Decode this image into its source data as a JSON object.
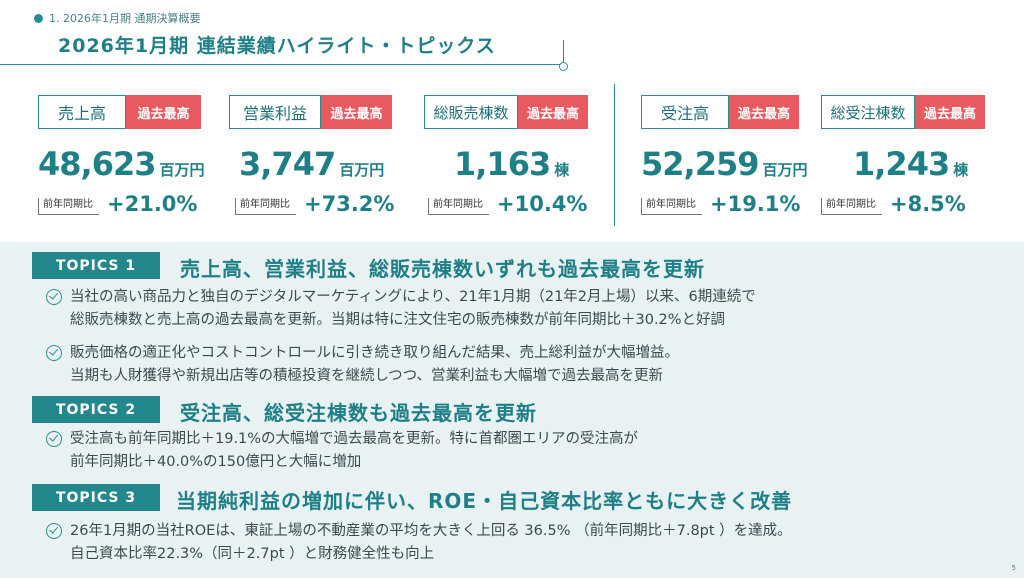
{
  "header": {
    "breadcrumb": "1. 2026年1月期 通期決算概要",
    "title": "2026年1月期 連結業績ハイライト・トピックス"
  },
  "kpis": [
    {
      "label": "売上高",
      "badge": "過去最高",
      "value": "48,623",
      "unit": "百万円",
      "yoy_label": "前年同期比",
      "yoy": "+21.0%"
    },
    {
      "label": "営業利益",
      "badge": "過去最高",
      "value": "3,747",
      "unit": "百万円",
      "yoy_label": "前年同期比",
      "yoy": "+73.2%"
    },
    {
      "label": "総販売棟数",
      "badge": "過去最高",
      "value": "1,163",
      "unit": "棟",
      "yoy_label": "前年同期比",
      "yoy": "+10.4%"
    },
    {
      "label": "受注高",
      "badge": "過去最高",
      "value": "52,259",
      "unit": "百万円",
      "yoy_label": "前年同期比",
      "yoy": "+19.1%"
    },
    {
      "label": "総受注棟数",
      "badge": "過去最高",
      "value": "1,243",
      "unit": "棟",
      "yoy_label": "前年同期比",
      "yoy": "+8.5%"
    }
  ],
  "topics": [
    {
      "tag": "TOPICS 1",
      "heading": "売上高、営業利益、総販売棟数いずれも過去最高を更新",
      "items": [
        [
          "当社の高い商品力と独自のデジタルマーケティングにより、21年1月期（21年2月上場）以来、6期連続で",
          "総販売棟数と売上高の過去最高を更新。当期は特に注文住宅の販売棟数が前年同期比＋30.2%と好調"
        ],
        [
          "販売価格の適正化やコストコントロールに引き続き取り組んだ結果、売上総利益が大幅増益。",
          "当期も人財獲得や新規出店等の積極投資を継続しつつ、営業利益も大幅増で過去最高を更新"
        ]
      ]
    },
    {
      "tag": "TOPICS 2",
      "heading": "受注高、総受注棟数も過去最高を更新",
      "items": [
        [
          "受注高も前年同期比＋19.1%の大幅増で過去最高を更新。特に首都圏エリアの受注高が",
          "前年同期比＋40.0%の150億円と大幅に増加"
        ]
      ]
    },
    {
      "tag": "TOPICS 3",
      "heading": "当期純利益の増加に伴い、ROE・自己資本比率ともに大きく改善",
      "items": [
        [
          "26年1月期の当社ROEは、東証上場の不動産業の平均を大きく上回る 36.5% （前年同期比＋7.8pt ）を達成。",
          "自己資本比率22.3%（同＋2.7pt ）と財務健全性も向上"
        ]
      ]
    }
  ],
  "page_number": "5",
  "colors": {
    "teal": "#1f7f86",
    "badge_red": "#e85a5f",
    "panel_bg": "#e8f2f2",
    "tag_bg": "#23878e"
  },
  "icons": {
    "bullet": "check-circle-icon",
    "breadcrumb": "dot-icon"
  }
}
